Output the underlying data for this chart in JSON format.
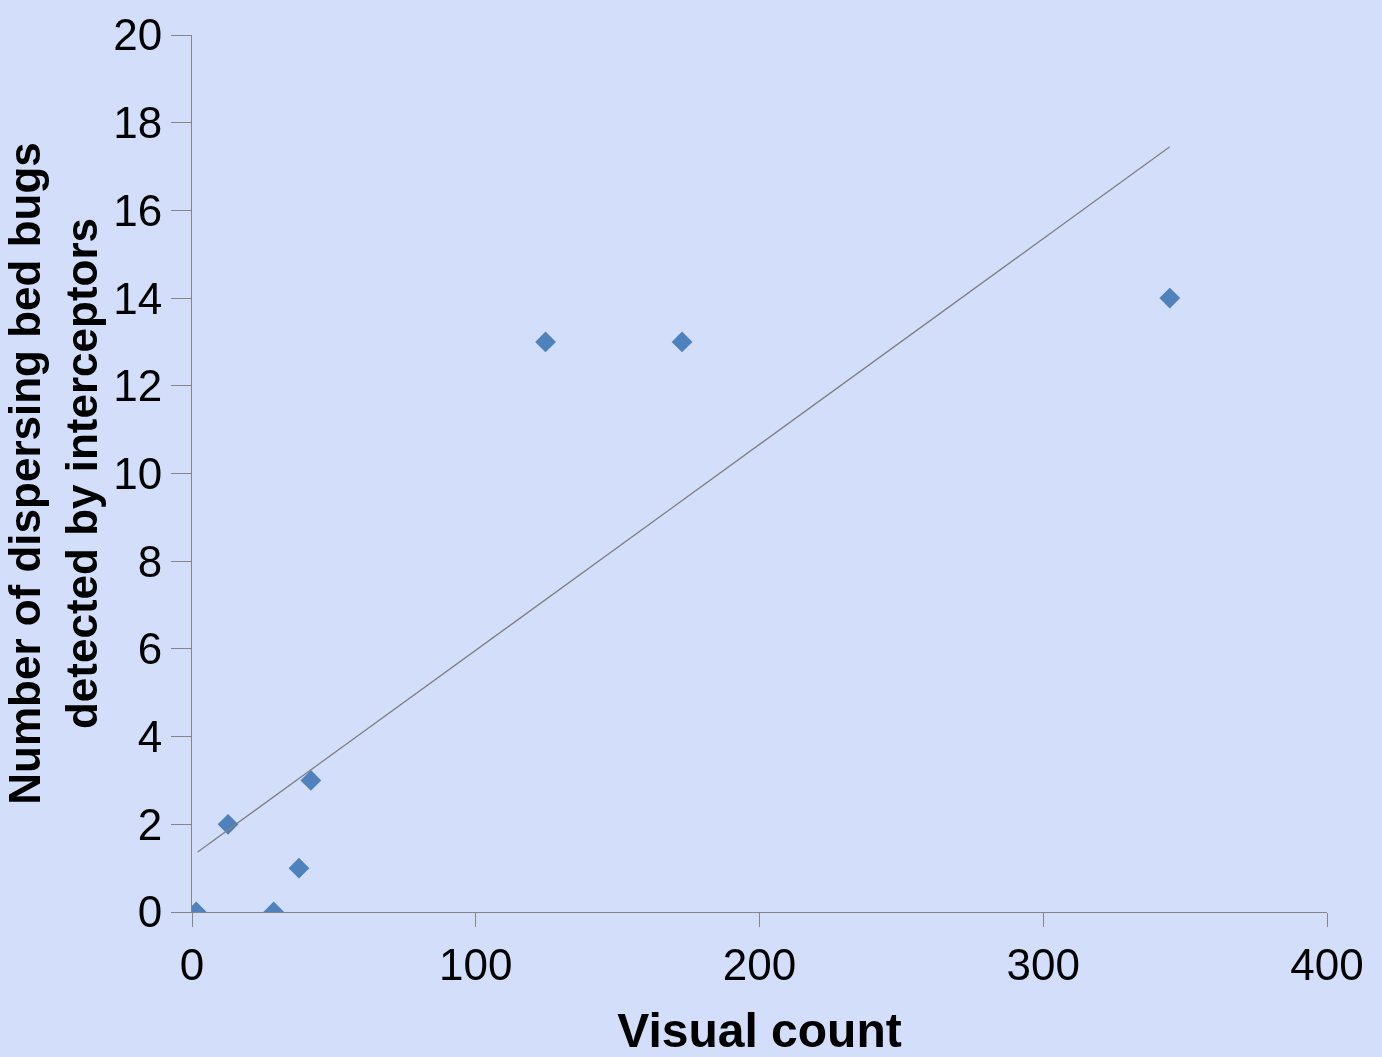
{
  "chart_data": {
    "type": "scatter",
    "xlabel": "Visual count",
    "ylabel": "Number of dispersing bed bugs\ndetected by interceptors",
    "x": [
      1.5,
      12.7,
      28.8,
      37.7,
      41.9,
      124.6,
      172.7,
      344.6
    ],
    "series": [
      {
        "color": "#4f81bd",
        "marker": "diamond",
        "values": [
          0,
          2,
          0,
          1,
          3,
          13,
          13,
          14
        ]
      },
      {
        "type": "line",
        "color": "#808080",
        "marker": "none",
        "x": [
          2,
          344.6
        ],
        "values": [
          1.37,
          17.45
        ]
      }
    ],
    "xlim": [
      0,
      400
    ],
    "xticks": [
      0,
      100,
      200,
      300,
      400
    ],
    "ylim": [
      0,
      20
    ],
    "yticks": [
      0,
      2,
      4,
      6,
      8,
      10,
      12,
      14,
      16,
      18,
      20
    ],
    "grid": false
  }
}
